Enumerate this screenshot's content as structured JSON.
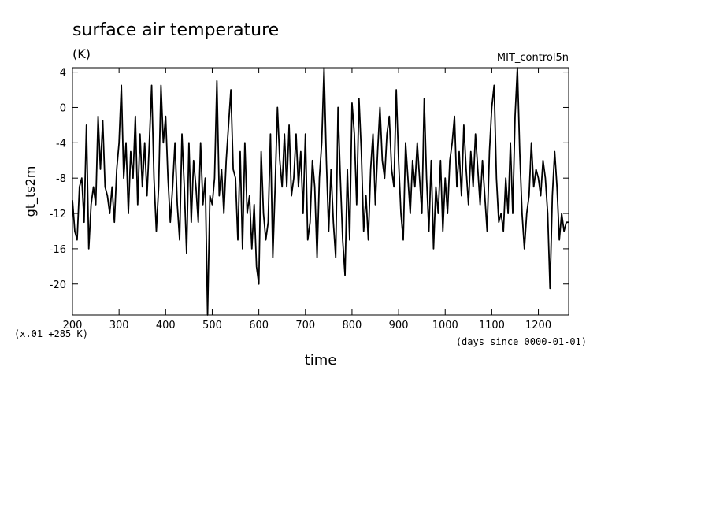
{
  "chart_data": {
    "type": "line",
    "title": "surface air temperature",
    "units": "(K)",
    "experiment": "MIT_control5n",
    "xlabel": "time",
    "xlabel_note": "(days since 0000-01-01)",
    "ylabel": "gt_ts2m",
    "yscale_note": "(x.01 +285 K)",
    "xlim": [
      200,
      1265
    ],
    "ylim": [
      -23.5,
      4.5
    ],
    "xticks": [
      200,
      300,
      400,
      500,
      600,
      700,
      800,
      900,
      1000,
      1100,
      1200
    ],
    "yticks": [
      4,
      0,
      -4,
      -8,
      -12,
      -16,
      -20
    ],
    "series": [
      {
        "name": "gt_ts2m",
        "color": "#000000",
        "points": [
          [
            200,
            -10.5
          ],
          [
            205,
            -14
          ],
          [
            210,
            -15
          ],
          [
            215,
            -9
          ],
          [
            220,
            -8
          ],
          [
            225,
            -13
          ],
          [
            230,
            -2
          ],
          [
            235,
            -16
          ],
          [
            240,
            -11
          ],
          [
            245,
            -9
          ],
          [
            250,
            -11
          ],
          [
            255,
            -1
          ],
          [
            260,
            -7
          ],
          [
            265,
            -1.5
          ],
          [
            270,
            -9
          ],
          [
            275,
            -10
          ],
          [
            280,
            -12
          ],
          [
            285,
            -9
          ],
          [
            290,
            -13
          ],
          [
            295,
            -7
          ],
          [
            300,
            -4
          ],
          [
            305,
            2.5
          ],
          [
            310,
            -8
          ],
          [
            315,
            -4
          ],
          [
            320,
            -12
          ],
          [
            325,
            -5
          ],
          [
            330,
            -8
          ],
          [
            335,
            -1
          ],
          [
            340,
            -11
          ],
          [
            345,
            -3
          ],
          [
            350,
            -9
          ],
          [
            355,
            -4
          ],
          [
            360,
            -10
          ],
          [
            365,
            -4
          ],
          [
            370,
            2.5
          ],
          [
            375,
            -8
          ],
          [
            380,
            -14
          ],
          [
            385,
            -9
          ],
          [
            390,
            2.5
          ],
          [
            395,
            -4
          ],
          [
            400,
            -1
          ],
          [
            405,
            -8
          ],
          [
            410,
            -13
          ],
          [
            415,
            -9
          ],
          [
            420,
            -4
          ],
          [
            425,
            -11
          ],
          [
            430,
            -15
          ],
          [
            435,
            -3
          ],
          [
            440,
            -9
          ],
          [
            445,
            -16.5
          ],
          [
            450,
            -4
          ],
          [
            455,
            -13
          ],
          [
            460,
            -6
          ],
          [
            465,
            -9
          ],
          [
            470,
            -13
          ],
          [
            475,
            -4
          ],
          [
            480,
            -11
          ],
          [
            485,
            -8
          ],
          [
            490,
            -23.5
          ],
          [
            495,
            -10
          ],
          [
            500,
            -11
          ],
          [
            505,
            -8
          ],
          [
            510,
            3
          ],
          [
            515,
            -10
          ],
          [
            520,
            -7
          ],
          [
            525,
            -12
          ],
          [
            530,
            -6
          ],
          [
            535,
            -2
          ],
          [
            540,
            2
          ],
          [
            545,
            -7
          ],
          [
            550,
            -8
          ],
          [
            555,
            -15
          ],
          [
            560,
            -5
          ],
          [
            565,
            -16
          ],
          [
            570,
            -4
          ],
          [
            575,
            -12
          ],
          [
            580,
            -10
          ],
          [
            585,
            -16
          ],
          [
            590,
            -11
          ],
          [
            595,
            -18
          ],
          [
            600,
            -20
          ],
          [
            605,
            -5
          ],
          [
            610,
            -12
          ],
          [
            615,
            -15
          ],
          [
            620,
            -13
          ],
          [
            625,
            -3
          ],
          [
            630,
            -17
          ],
          [
            635,
            -9
          ],
          [
            640,
            0
          ],
          [
            645,
            -6
          ],
          [
            650,
            -9
          ],
          [
            655,
            -3
          ],
          [
            660,
            -9
          ],
          [
            665,
            -2
          ],
          [
            670,
            -10
          ],
          [
            675,
            -8
          ],
          [
            680,
            -3
          ],
          [
            685,
            -9
          ],
          [
            690,
            -5
          ],
          [
            695,
            -12
          ],
          [
            700,
            -3
          ],
          [
            705,
            -15
          ],
          [
            710,
            -13
          ],
          [
            715,
            -6
          ],
          [
            720,
            -9
          ],
          [
            725,
            -17
          ],
          [
            730,
            -8
          ],
          [
            735,
            -4
          ],
          [
            740,
            4.5
          ],
          [
            745,
            -6
          ],
          [
            750,
            -14
          ],
          [
            755,
            -7
          ],
          [
            760,
            -13
          ],
          [
            765,
            -17
          ],
          [
            770,
            0
          ],
          [
            775,
            -8
          ],
          [
            780,
            -15
          ],
          [
            785,
            -19
          ],
          [
            790,
            -7
          ],
          [
            795,
            -15
          ],
          [
            800,
            0.5
          ],
          [
            805,
            -3
          ],
          [
            810,
            -11
          ],
          [
            815,
            1
          ],
          [
            820,
            -5
          ],
          [
            825,
            -14
          ],
          [
            830,
            -10
          ],
          [
            835,
            -15
          ],
          [
            840,
            -7
          ],
          [
            845,
            -3
          ],
          [
            850,
            -11
          ],
          [
            855,
            -5
          ],
          [
            860,
            0
          ],
          [
            865,
            -6
          ],
          [
            870,
            -8
          ],
          [
            875,
            -3
          ],
          [
            880,
            -1
          ],
          [
            885,
            -7
          ],
          [
            890,
            -9
          ],
          [
            895,
            2
          ],
          [
            900,
            -6
          ],
          [
            905,
            -12
          ],
          [
            910,
            -15
          ],
          [
            915,
            -4
          ],
          [
            920,
            -8
          ],
          [
            925,
            -12
          ],
          [
            930,
            -6
          ],
          [
            935,
            -9
          ],
          [
            940,
            -4
          ],
          [
            945,
            -8
          ],
          [
            950,
            -12
          ],
          [
            955,
            1
          ],
          [
            960,
            -8
          ],
          [
            965,
            -14
          ],
          [
            970,
            -6
          ],
          [
            975,
            -16
          ],
          [
            980,
            -9
          ],
          [
            985,
            -12
          ],
          [
            990,
            -6
          ],
          [
            995,
            -14
          ],
          [
            1000,
            -8
          ],
          [
            1005,
            -12
          ],
          [
            1010,
            -6
          ],
          [
            1015,
            -4
          ],
          [
            1020,
            -1
          ],
          [
            1025,
            -9
          ],
          [
            1030,
            -5
          ],
          [
            1035,
            -10
          ],
          [
            1040,
            -2
          ],
          [
            1045,
            -7
          ],
          [
            1050,
            -11
          ],
          [
            1055,
            -5
          ],
          [
            1060,
            -9
          ],
          [
            1065,
            -3
          ],
          [
            1070,
            -7
          ],
          [
            1075,
            -11
          ],
          [
            1080,
            -6
          ],
          [
            1085,
            -10
          ],
          [
            1090,
            -14
          ],
          [
            1095,
            -5
          ],
          [
            1100,
            0
          ],
          [
            1105,
            2.5
          ],
          [
            1110,
            -8
          ],
          [
            1115,
            -13
          ],
          [
            1120,
            -12
          ],
          [
            1125,
            -14
          ],
          [
            1130,
            -8
          ],
          [
            1135,
            -12
          ],
          [
            1140,
            -4
          ],
          [
            1145,
            -12
          ],
          [
            1150,
            -1
          ],
          [
            1155,
            4.5
          ],
          [
            1160,
            -5
          ],
          [
            1165,
            -12
          ],
          [
            1170,
            -16
          ],
          [
            1175,
            -12
          ],
          [
            1180,
            -10
          ],
          [
            1185,
            -4
          ],
          [
            1190,
            -9
          ],
          [
            1195,
            -7
          ],
          [
            1200,
            -8
          ],
          [
            1205,
            -10
          ],
          [
            1210,
            -6
          ],
          [
            1215,
            -8
          ],
          [
            1220,
            -12
          ],
          [
            1225,
            -20.5
          ],
          [
            1230,
            -10
          ],
          [
            1235,
            -5
          ],
          [
            1240,
            -9
          ],
          [
            1245,
            -15
          ],
          [
            1250,
            -12
          ],
          [
            1255,
            -14
          ],
          [
            1260,
            -13
          ],
          [
            1265,
            -13
          ]
        ]
      }
    ]
  }
}
